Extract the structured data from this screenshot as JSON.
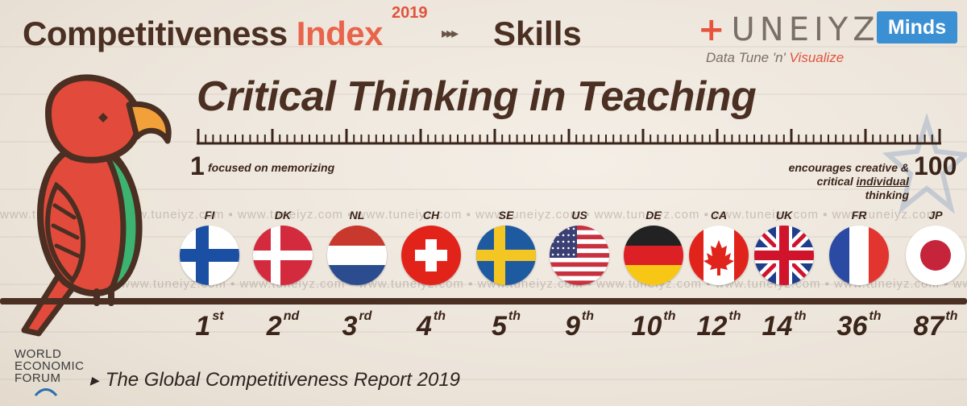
{
  "header": {
    "title_part1": "Competitiveness",
    "title_accent": "Index",
    "year": "2019",
    "arrows": "▸▸▸",
    "category": "Skills",
    "subtitle": "Critical Thinking in Teaching"
  },
  "brand": {
    "plus": "+",
    "name": "UNEIYZ",
    "badge": "Minds",
    "tagline_part1": "Data Tune 'n' ",
    "tagline_part2": "Visualize"
  },
  "scale": {
    "min_label": "1",
    "min_desc": "focused on memorizing",
    "max_label": "100",
    "max_desc_line1": "encourages creative &",
    "max_desc_line2_a": "critical ",
    "max_desc_line2_b": "individual",
    "max_desc_line2_c": " thinking"
  },
  "watermark": "www.tuneiyz.com ▪ www.tuneiyz.com ▪ www.tuneiyz.com ▪ www.tuneiyz.com ▪ www.tuneiyz.com ▪ www.tuneiyz.com ▪ www.tuneiyz.com ▪ www.tuneiyz.com",
  "countries": [
    {
      "code": "FI",
      "rank": "1",
      "suffix": "st",
      "flag": "finland-flag"
    },
    {
      "code": "DK",
      "rank": "2",
      "suffix": "nd",
      "flag": "denmark-flag"
    },
    {
      "code": "NL",
      "rank": "3",
      "suffix": "rd",
      "flag": "netherlands-flag"
    },
    {
      "code": "CH",
      "rank": "4",
      "suffix": "th",
      "flag": "switzerland-flag"
    },
    {
      "code": "SE",
      "rank": "5",
      "suffix": "th",
      "flag": "sweden-flag"
    },
    {
      "code": "US",
      "rank": "9",
      "suffix": "th",
      "flag": "usa-flag"
    },
    {
      "code": "DE",
      "rank": "10",
      "suffix": "th",
      "flag": "germany-flag"
    },
    {
      "code": "CA",
      "rank": "12",
      "suffix": "th",
      "flag": "canada-flag"
    },
    {
      "code": "UK",
      "rank": "14",
      "suffix": "th",
      "flag": "uk-flag"
    },
    {
      "code": "FR",
      "rank": "36",
      "suffix": "th",
      "flag": "france-flag"
    },
    {
      "code": "JP",
      "rank": "87",
      "suffix": "th",
      "flag": "japan-flag"
    }
  ],
  "footer": {
    "wef_line1": "WORLD",
    "wef_line2": "ECONOMIC",
    "wef_line3": "FORUM",
    "source": "The Global Competitiveness Report  2019"
  },
  "colors": {
    "brown": "#4a2f22",
    "accent": "#e8644a",
    "brand_blue": "#3a90d3",
    "bird_red": "#e24a3b",
    "bird_green": "#3cb371"
  }
}
